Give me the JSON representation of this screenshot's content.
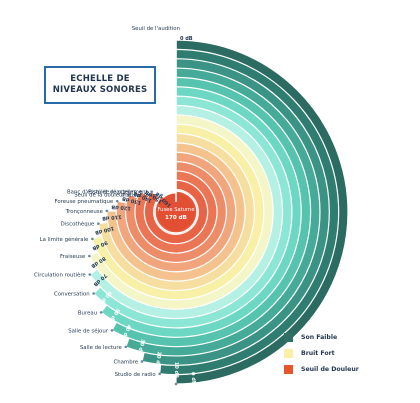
{
  "title": {
    "line1": "ECHELLE DE",
    "line2": "NIVEAUX SONORES"
  },
  "chart_data": {
    "type": "radial_bar",
    "series_groups": [
      {
        "name": "Son Faible",
        "color": "#2f6f64"
      },
      {
        "name": "Bruit Fort",
        "color": "#f7f0a6"
      },
      {
        "name": "Seuil de Douleur",
        "color": "#e8552d"
      }
    ],
    "rings": [
      {
        "label": "Seuil de l'audition",
        "value": "0 dB",
        "color": "#2c6b61",
        "group": "Son Faible"
      },
      {
        "label": "Studio de radio",
        "value": "10 dB",
        "color": "#2f7d70",
        "group": "Son Faible"
      },
      {
        "label": "Chambre",
        "value": "20 dB",
        "color": "#3a9384",
        "group": "Son Faible"
      },
      {
        "label": "Salle de lecture",
        "value": "30 dB",
        "color": "#45ab98",
        "group": "Son Faible"
      },
      {
        "label": "Salle de séjour",
        "value": "40 dB",
        "color": "#55c3ad",
        "group": "Son Faible"
      },
      {
        "label": "Bureau",
        "value": "50 dB",
        "color": "#6cd8c4",
        "group": "Son Faible"
      },
      {
        "label": "Conversation",
        "value": "60 dB",
        "color": "#8ce6d5",
        "group": "Son Faible"
      },
      {
        "label": "Circulation routière",
        "value": "70 dB",
        "color": "#b5f0e4",
        "group": "Bruit Fort"
      },
      {
        "label": "Fraiseuse",
        "value": "80 dB",
        "color": "#f5f6c8",
        "group": "Bruit Fort"
      },
      {
        "label": "La limite générale",
        "value": "90 dB",
        "color": "#f7f0a6",
        "group": "Bruit Fort"
      },
      {
        "label": "Discothèque",
        "value": "100 dB",
        "color": "#f6dea0",
        "group": "Bruit Fort"
      },
      {
        "label": "Tronçonneuse",
        "value": "110 dB",
        "color": "#f4c28d",
        "group": "Bruit Fort"
      },
      {
        "label": "Foreuse pneumatique",
        "value": "120 dB",
        "color": "#f0a57c",
        "group": "Seuil de Douleur"
      },
      {
        "label": "Seuil de la douleur",
        "value": "130 dB",
        "color": "#ed8c68",
        "group": "Seuil de Douleur"
      },
      {
        "label": "Banc d'essai de réacteurs",
        "value": "140 dB",
        "color": "#ea7656",
        "group": "Seuil de Douleur"
      },
      {
        "label": "Pistolet de scellement",
        "value": "150 dB",
        "color": "#e86447",
        "group": "Seuil de Douleur"
      },
      {
        "label": "Pistolet 9mm",
        "value": "160 dB",
        "color": "#e55a3d",
        "group": "Seuil de Douleur"
      },
      {
        "label": "Fusée Saturne",
        "value": "170 dB",
        "color": "#e24f33",
        "group": "Seuil de Douleur"
      }
    ]
  },
  "colors": {
    "accent": "#2a6aa6",
    "text": "#1f3550",
    "leader": "#6a86a8"
  }
}
